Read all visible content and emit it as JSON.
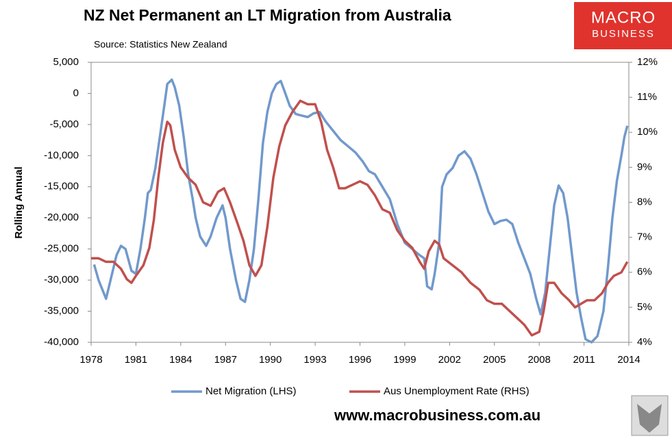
{
  "chart_data": {
    "type": "line",
    "title": "NZ Net Permanent an LT Migration from Australia",
    "subtitle": "Source: Statistics New Zealand",
    "ylabel": "Rolling Annual",
    "xlim": [
      1978,
      2014
    ],
    "xticks": [
      1978,
      1981,
      1984,
      1987,
      1990,
      1993,
      1996,
      1999,
      2002,
      2005,
      2008,
      2011,
      2014
    ],
    "ylim": [
      -40000,
      5000
    ],
    "yticks": [
      {
        "value": 5000,
        "label": "5,000"
      },
      0,
      {
        "value": -5000,
        "label": "-5,000"
      },
      {
        "value": -10000,
        "label": "-10,000"
      },
      {
        "value": -15000,
        "label": "-15,000"
      },
      {
        "value": -20000,
        "label": "-20,000"
      },
      {
        "value": -25000,
        "label": "-25,000"
      },
      {
        "value": -30000,
        "label": "-30,000"
      },
      {
        "value": -35000,
        "label": "-35,000"
      },
      {
        "value": -40000,
        "label": "-40,000"
      }
    ],
    "y2lim": [
      4,
      12
    ],
    "y2ticks": [
      {
        "value": 12,
        "label": "12%"
      },
      {
        "value": 11,
        "label": "11%"
      },
      {
        "value": 10,
        "label": "10%"
      },
      {
        "value": 9,
        "label": "9%"
      },
      {
        "value": 8,
        "label": "8%"
      },
      {
        "value": 7,
        "label": "7%"
      },
      {
        "value": 6,
        "label": "6%"
      },
      {
        "value": 5,
        "label": "5%"
      },
      {
        "value": 4,
        "label": "4%"
      }
    ],
    "grid": false,
    "legend": "bottom",
    "series": [
      {
        "name": "Net Migration (LHS)",
        "color": "#7199cc",
        "axis": "y",
        "x": [
          1978.2,
          1978.5,
          1979.0,
          1979.2,
          1979.7,
          1980.0,
          1980.3,
          1980.7,
          1981.0,
          1981.3,
          1981.6,
          1981.8,
          1982.0,
          1982.3,
          1982.6,
          1982.9,
          1983.1,
          1983.4,
          1983.6,
          1983.9,
          1984.2,
          1984.5,
          1984.8,
          1985.0,
          1985.3,
          1985.7,
          1986.0,
          1986.4,
          1986.8,
          1987.0,
          1987.3,
          1987.7,
          1988.0,
          1988.3,
          1988.6,
          1988.9,
          1989.2,
          1989.5,
          1989.8,
          1990.1,
          1990.4,
          1990.7,
          1991.0,
          1991.3,
          1991.7,
          1992.0,
          1992.5,
          1992.9,
          1993.3,
          1993.7,
          1994.2,
          1994.7,
          1995.2,
          1995.7,
          1996.2,
          1996.6,
          1997.0,
          1997.5,
          1998.0,
          1998.5,
          1999.0,
          1999.5,
          2000.0,
          2000.3,
          2000.5,
          2000.8,
          2001.0,
          2001.3,
          2001.5,
          2001.8,
          2002.2,
          2002.6,
          2003.0,
          2003.4,
          2003.8,
          2004.2,
          2004.6,
          2005.0,
          2005.4,
          2005.8,
          2006.2,
          2006.6,
          2007.0,
          2007.4,
          2007.8,
          2008.1,
          2008.4,
          2008.7,
          2009.0,
          2009.3,
          2009.6,
          2009.9,
          2010.2,
          2010.5,
          2010.8,
          2011.1,
          2011.5,
          2011.9,
          2012.3,
          2012.6,
          2012.9,
          2013.2,
          2013.5,
          2013.7,
          2013.9
        ],
        "values": [
          -27500,
          -30000,
          -33000,
          -31000,
          -26000,
          -24500,
          -25000,
          -28500,
          -29000,
          -25000,
          -20000,
          -16000,
          -15500,
          -12000,
          -7000,
          -2000,
          1500,
          2200,
          1000,
          -2000,
          -7000,
          -13000,
          -17000,
          -20000,
          -23000,
          -24500,
          -23000,
          -20000,
          -18000,
          -20000,
          -25000,
          -30000,
          -33000,
          -33500,
          -30000,
          -25000,
          -17000,
          -8000,
          -3000,
          0,
          1500,
          2000,
          0,
          -2000,
          -3300,
          -3500,
          -3800,
          -3200,
          -3000,
          -4500,
          -6000,
          -7500,
          -8500,
          -9500,
          -11000,
          -12500,
          -13000,
          -15000,
          -17000,
          -21000,
          -24000,
          -25000,
          -26000,
          -26500,
          -31000,
          -31500,
          -29000,
          -24000,
          -15000,
          -13000,
          -12000,
          -10000,
          -9300,
          -10500,
          -13000,
          -16000,
          -19000,
          -21000,
          -20500,
          -20300,
          -21000,
          -24000,
          -26500,
          -29000,
          -33000,
          -35500,
          -32000,
          -25000,
          -18000,
          -14800,
          -16000,
          -20000,
          -26000,
          -32000,
          -36000,
          -39500,
          -40000,
          -39000,
          -35000,
          -28000,
          -20000,
          -14000,
          -10000,
          -7000,
          -5200
        ]
      },
      {
        "name": "Aus Unemployment Rate (RHS)",
        "color": "#c0504d",
        "axis": "y2",
        "x": [
          1978.0,
          1978.5,
          1979.0,
          1979.5,
          1980.0,
          1980.4,
          1980.7,
          1981.0,
          1981.5,
          1981.9,
          1982.2,
          1982.5,
          1982.8,
          1983.1,
          1983.3,
          1983.6,
          1984.0,
          1984.5,
          1985.0,
          1985.5,
          1986.0,
          1986.5,
          1986.9,
          1987.3,
          1987.8,
          1988.2,
          1988.6,
          1989.0,
          1989.4,
          1989.8,
          1990.2,
          1990.6,
          1991.0,
          1991.5,
          1992.0,
          1992.5,
          1993.0,
          1993.4,
          1993.8,
          1994.2,
          1994.6,
          1995.0,
          1995.5,
          1996.0,
          1996.5,
          1997.0,
          1997.5,
          1998.0,
          1998.5,
          1999.0,
          1999.5,
          2000.0,
          2000.3,
          2000.6,
          2001.0,
          2001.3,
          2001.6,
          2002.2,
          2002.8,
          2003.4,
          2004.0,
          2004.5,
          2005.0,
          2005.5,
          2006.0,
          2006.5,
          2007.0,
          2007.5,
          2008.0,
          2008.3,
          2008.6,
          2009.0,
          2009.5,
          2010.0,
          2010.4,
          2010.8,
          2011.2,
          2011.7,
          2012.2,
          2012.6,
          2013.0,
          2013.5,
          2013.9
        ],
        "values": [
          6.4,
          6.4,
          6.3,
          6.3,
          6.1,
          5.8,
          5.7,
          5.9,
          6.2,
          6.7,
          7.5,
          8.7,
          9.7,
          10.3,
          10.2,
          9.5,
          9.0,
          8.7,
          8.5,
          8.0,
          7.9,
          8.3,
          8.4,
          8.0,
          7.4,
          6.9,
          6.2,
          5.9,
          6.2,
          7.3,
          8.7,
          9.6,
          10.2,
          10.6,
          10.9,
          10.8,
          10.8,
          10.3,
          9.5,
          9.0,
          8.4,
          8.4,
          8.5,
          8.6,
          8.5,
          8.2,
          7.8,
          7.7,
          7.2,
          6.9,
          6.7,
          6.3,
          6.1,
          6.6,
          6.9,
          6.8,
          6.4,
          6.2,
          6.0,
          5.7,
          5.5,
          5.2,
          5.1,
          5.1,
          4.9,
          4.7,
          4.5,
          4.2,
          4.3,
          4.9,
          5.7,
          5.7,
          5.4,
          5.2,
          5.0,
          5.1,
          5.2,
          5.2,
          5.4,
          5.7,
          5.9,
          6.0,
          6.3
        ]
      }
    ]
  },
  "logo": {
    "line1": "MACRO",
    "line2": "BUSINESS"
  },
  "footer": "www.macrobusiness.com.au"
}
